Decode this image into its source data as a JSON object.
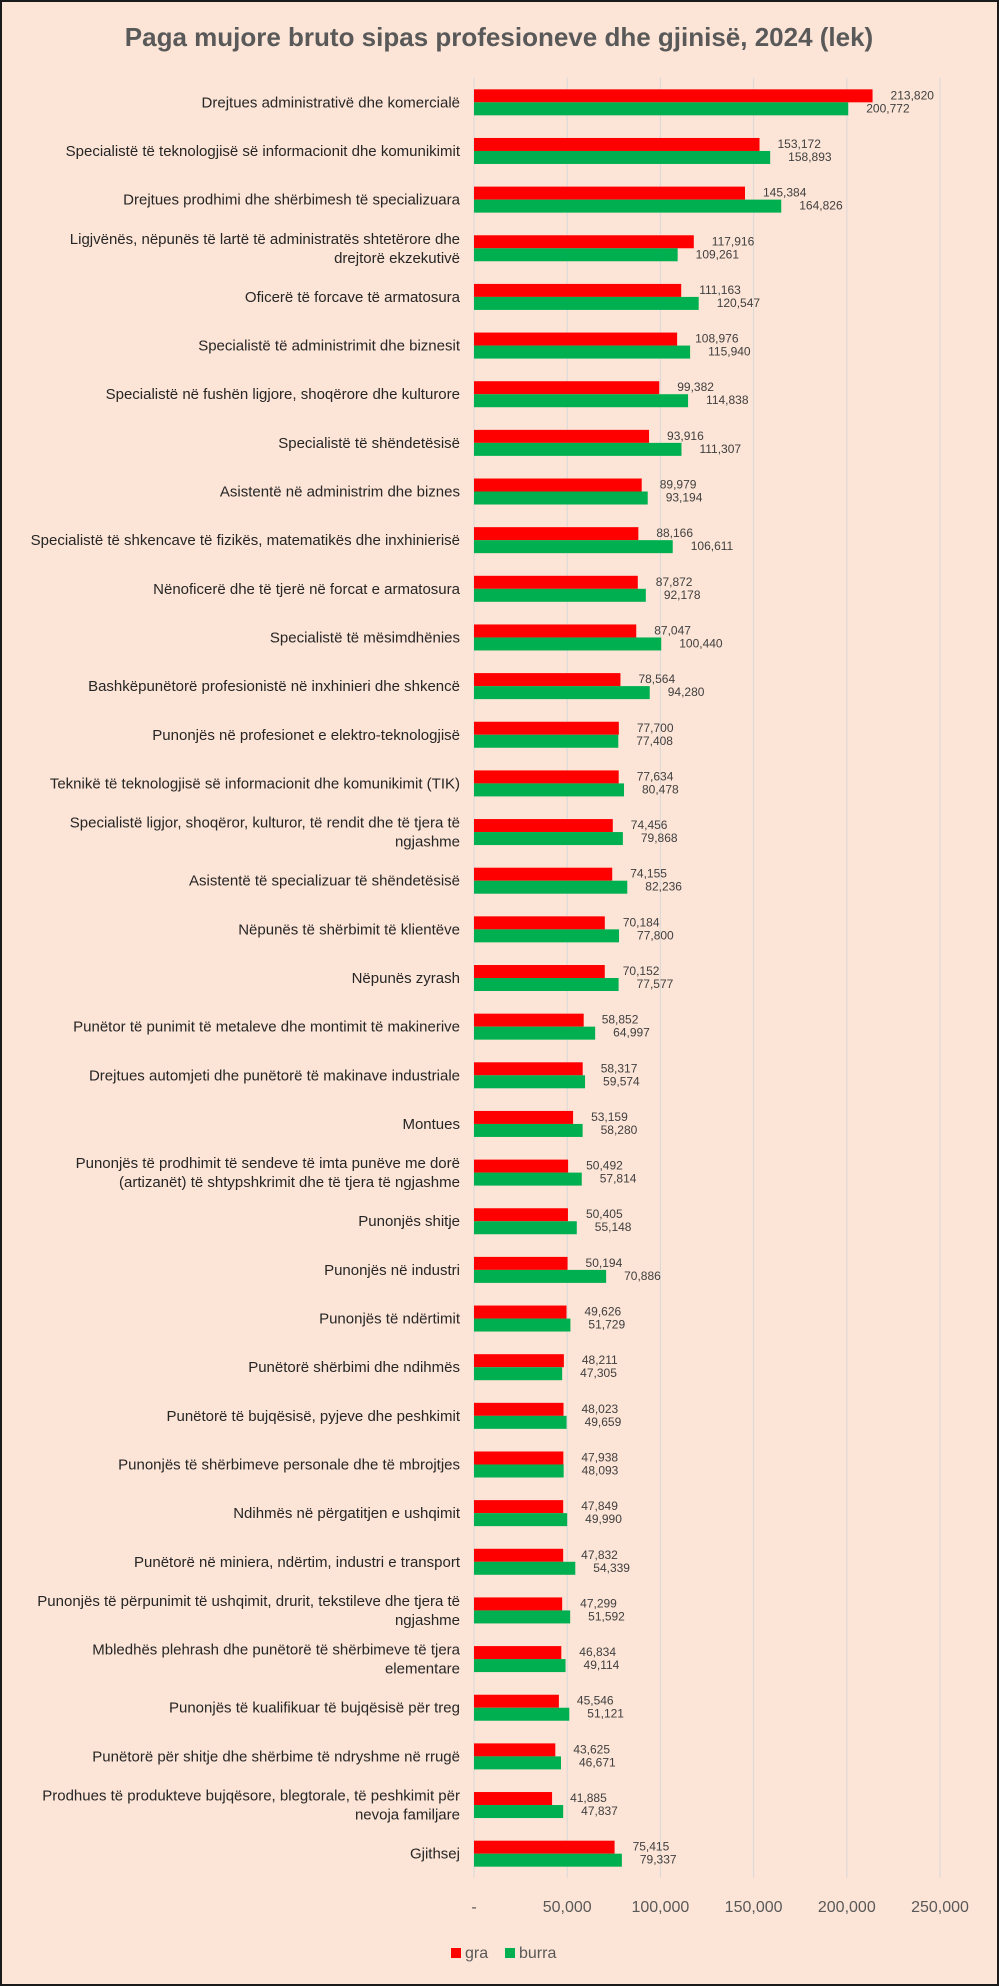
{
  "chart_data": {
    "type": "bar",
    "orientation": "horizontal",
    "title": "Paga mujore bruto sipas profesioneve dhe gjinisë, 2024 (lek)",
    "xlabel": "",
    "ylabel": "",
    "xlim": [
      0,
      250000
    ],
    "ticks": [
      "-",
      "50,000",
      "100,000",
      "150,000",
      "200,000",
      "250,000"
    ],
    "grid": true,
    "legend": "bottom-left",
    "categories": [
      [
        "Drejtues administrativë dhe komercialë"
      ],
      [
        "Specialistë të teknologjisë së informacionit dhe komunikimit"
      ],
      [
        "Drejtues prodhimi dhe shërbimesh të specializuara"
      ],
      [
        "Ligjvënës, nëpunës të lartë të administratës shtetërore dhe",
        "drejtorë ekzekutivë"
      ],
      [
        "Oficerë të forcave të armatosura"
      ],
      [
        "Specialistë të administrimit dhe biznesit"
      ],
      [
        "Specialistë në fushën ligjore, shoqërore dhe kulturore"
      ],
      [
        "Specialistë të shëndetësisë"
      ],
      [
        "Asistentë në administrim dhe biznes"
      ],
      [
        "Specialistë të shkencave të fizikës, matematikës dhe inxhinierisë"
      ],
      [
        "Nënoficerë dhe të tjerë në forcat e armatosura"
      ],
      [
        "Specialistë të mësimdhënies"
      ],
      [
        "Bashkëpunëtorë profesionistë në inxhinieri dhe shkencë"
      ],
      [
        "Punonjës në profesionet e elektro-teknologjisë"
      ],
      [
        "Teknikë të teknologjisë së informacionit dhe komunikimit (TIK)"
      ],
      [
        "Specialistë ligjor, shoqëror, kulturor, të rendit dhe të tjera të",
        "ngjashme"
      ],
      [
        "Asistentë të specializuar të shëndetësisë"
      ],
      [
        "Nëpunës të shërbimit të klientëve"
      ],
      [
        "Nëpunës zyrash"
      ],
      [
        "Punëtor të punimit të metaleve dhe montimit të makinerive"
      ],
      [
        "Drejtues automjeti dhe punëtorë të makinave industriale"
      ],
      [
        "Montues"
      ],
      [
        "Punonjës të prodhimit të sendeve të imta punëve me dorë",
        "(artizanët) të shtypshkrimit dhe të tjera të ngjashme"
      ],
      [
        "Punonjës shitje"
      ],
      [
        "Punonjës në industri"
      ],
      [
        "Punonjës të ndërtimit"
      ],
      [
        "Punëtorë shërbimi dhe ndihmës"
      ],
      [
        "Punëtorë të bujqësisë, pyjeve dhe peshkimit"
      ],
      [
        "Punonjës të shërbimeve personale dhe të mbrojtjes"
      ],
      [
        "Ndihmës në përgatitjen e ushqimit"
      ],
      [
        "Punëtorë në miniera, ndërtim, industri e transport"
      ],
      [
        "Punonjës të përpunimit të ushqimit, drurit, tekstileve dhe tjera të",
        "ngjashme"
      ],
      [
        "Mbledhës plehrash dhe punëtorë të shërbimeve të tjera",
        "elementare"
      ],
      [
        "Punonjës të kualifikuar të bujqësisë për treg"
      ],
      [
        "Punëtorë për shitje dhe shërbime të ndryshme në rrugë"
      ],
      [
        "Prodhues të produkteve bujqësore, blegtorale, të peshkimit për",
        "nevoja familjare"
      ],
      [
        "Gjithsej"
      ]
    ],
    "series": [
      {
        "name": "gra",
        "color": "#ff0000",
        "values": [
          213820,
          153172,
          145384,
          117916,
          111163,
          108976,
          99382,
          93916,
          89979,
          88166,
          87872,
          87047,
          78564,
          77700,
          77634,
          74456,
          74155,
          70184,
          70152,
          58852,
          58317,
          53159,
          50492,
          50405,
          50194,
          49626,
          48211,
          48023,
          47938,
          47849,
          47832,
          47299,
          46834,
          45546,
          43625,
          41885,
          75415
        ],
        "labels": [
          "213,820",
          "153,172",
          "145,384",
          "117,916",
          "111,163",
          "108,976",
          "99,382",
          "93,916",
          "89,979",
          "88,166",
          "87,872",
          "87,047",
          "78,564",
          "77,700",
          "77,634",
          "74,456",
          "74,155",
          "70,184",
          "70,152",
          "58,852",
          "58,317",
          "53,159",
          "50,492",
          "50,405",
          "50,194",
          "49,626",
          "48,211",
          "48,023",
          "47,938",
          "47,849",
          "47,832",
          "47,299",
          "46,834",
          "45,546",
          "43,625",
          "41,885",
          "75,415"
        ]
      },
      {
        "name": "burra",
        "color": "#00b050",
        "values": [
          200772,
          158893,
          164826,
          109261,
          120547,
          115940,
          114838,
          111307,
          93194,
          106611,
          92178,
          100440,
          94280,
          77408,
          80478,
          79868,
          82236,
          77800,
          77577,
          64997,
          59574,
          58280,
          57814,
          55148,
          70886,
          51729,
          47305,
          49659,
          48093,
          49990,
          54339,
          51592,
          49114,
          51121,
          46671,
          47837,
          79337
        ],
        "labels": [
          "200,772",
          "158,893",
          "164,826",
          "109,261",
          "120,547",
          "115,940",
          "114,838",
          "111,307",
          "93,194",
          "106,611",
          "92,178",
          "100,440",
          "94,280",
          "77,408",
          "80,478",
          "79,868",
          "82,236",
          "77,800",
          "77,577",
          "64,997",
          "59,574",
          "58,280",
          "57,814",
          "55,148",
          "70,886",
          "51,729",
          "47,305",
          "49,659",
          "48,093",
          "49,990",
          "54,339",
          "51,592",
          "49,114",
          "51,121",
          "46,671",
          "47,837",
          "79,337"
        ]
      }
    ]
  }
}
